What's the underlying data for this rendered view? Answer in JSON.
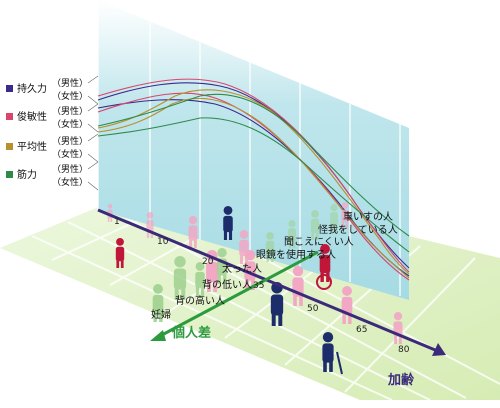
{
  "legend": [
    {
      "label": "持久力",
      "male": "（男性）",
      "female": "（女性）",
      "color": "#3b2a8c"
    },
    {
      "label": "俊敏性",
      "male": "（男性）",
      "female": "（女性）",
      "color": "#d9456c"
    },
    {
      "label": "平均性",
      "male": "（男性）",
      "female": "（女性）",
      "color": "#b8912e"
    },
    {
      "label": "筋力",
      "male": "（男性）",
      "female": "（女性）",
      "color": "#2f8a4a"
    }
  ],
  "age_ticks": [
    "1",
    "10",
    "20",
    "35",
    "50",
    "65",
    "80"
  ],
  "conditions": [
    "車いすの人",
    "怪我をしている人",
    "聞こえにくい人",
    "眼鏡を使用する人",
    "太った人",
    "背の低い人",
    "背の高い人",
    "妊婦"
  ],
  "axis_age": "加齢",
  "axis_individual": "個人差",
  "colors": {
    "panel": "#a9dde6",
    "floor": "#dff0c2",
    "floor_stripe": "#eef7dc",
    "purple_arrow": "#3b2a7a",
    "green_arrow": "#2e9a3e",
    "figure_pink": "#f2a7c5",
    "figure_navy": "#1d2d6b",
    "figure_green": "#9fd18f",
    "figure_red": "#c0163a"
  }
}
